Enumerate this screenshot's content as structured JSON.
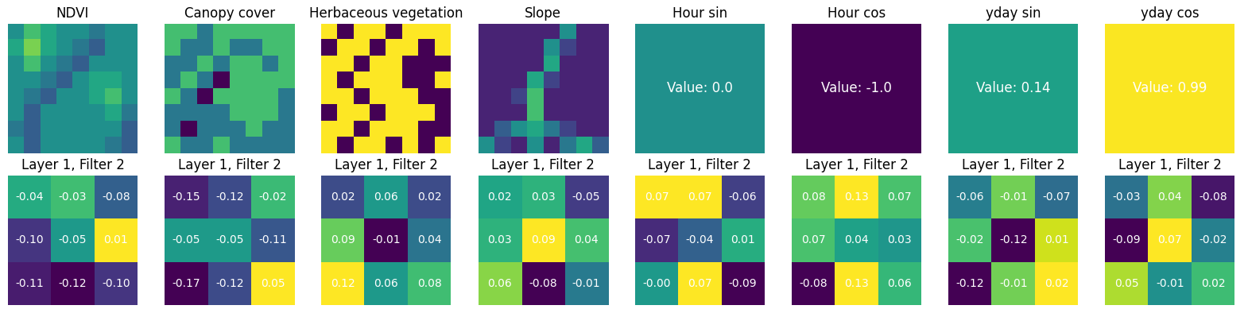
{
  "chart_data": [
    {
      "type": "heatmap",
      "title": "NDVI",
      "color_range": [
        0,
        1
      ],
      "cells": [
        [
          0.5,
          0.7,
          0.6,
          0.5,
          0.5,
          0.4,
          0.5,
          0.5
        ],
        [
          0.6,
          0.8,
          0.6,
          0.5,
          0.4,
          0.3,
          0.5,
          0.5
        ],
        [
          0.5,
          0.7,
          0.5,
          0.4,
          0.3,
          0.5,
          0.5,
          0.5
        ],
        [
          0.5,
          0.5,
          0.4,
          0.3,
          0.5,
          0.6,
          0.6,
          0.5
        ],
        [
          0.5,
          0.4,
          0.3,
          0.5,
          0.5,
          0.6,
          0.7,
          0.5
        ],
        [
          0.5,
          0.3,
          0.5,
          0.5,
          0.5,
          0.5,
          0.6,
          0.4
        ],
        [
          0.4,
          0.3,
          0.5,
          0.5,
          0.5,
          0.5,
          0.5,
          0.3
        ],
        [
          0.5,
          0.3,
          0.5,
          0.5,
          0.5,
          0.5,
          0.4,
          0.3
        ]
      ]
    },
    {
      "type": "heatmap",
      "title": "Canopy cover",
      "color_range": [
        0,
        1
      ],
      "cells": [
        [
          0.7,
          0.7,
          0.4,
          0.7,
          0.7,
          0.7,
          0.7,
          0.7
        ],
        [
          0.7,
          0.4,
          0.4,
          0.7,
          0.4,
          0.4,
          0.7,
          0.7
        ],
        [
          0.4,
          0.4,
          0.7,
          0.4,
          0.7,
          0.7,
          0.4,
          0.7
        ],
        [
          0.4,
          0.7,
          0.4,
          0.0,
          0.7,
          0.7,
          0.7,
          0.7
        ],
        [
          0.7,
          0.4,
          0.0,
          0.7,
          0.7,
          0.7,
          0.7,
          0.4
        ],
        [
          0.4,
          0.4,
          0.4,
          0.4,
          0.7,
          0.7,
          0.7,
          0.4
        ],
        [
          0.4,
          0.0,
          0.4,
          0.4,
          0.4,
          0.7,
          0.4,
          0.4
        ],
        [
          0.7,
          0.4,
          0.4,
          0.7,
          0.4,
          0.4,
          0.4,
          0.4
        ]
      ]
    },
    {
      "type": "heatmap",
      "title": "Herbaceous vegetation",
      "color_range": [
        0,
        1
      ],
      "cells": [
        [
          1,
          0,
          1,
          1,
          0,
          1,
          1,
          1
        ],
        [
          0,
          1,
          1,
          0,
          1,
          1,
          0,
          1
        ],
        [
          1,
          1,
          0,
          1,
          1,
          0,
          0,
          0
        ],
        [
          1,
          0,
          1,
          1,
          1,
          0,
          0,
          1
        ],
        [
          1,
          1,
          0,
          1,
          1,
          1,
          0,
          0
        ],
        [
          0,
          1,
          1,
          0,
          1,
          1,
          1,
          0
        ],
        [
          1,
          1,
          0,
          1,
          1,
          1,
          0,
          0
        ],
        [
          1,
          0,
          1,
          1,
          0,
          1,
          0,
          1
        ]
      ]
    },
    {
      "type": "heatmap",
      "title": "Slope",
      "color_range": [
        0,
        1
      ],
      "cells": [
        [
          0.1,
          0.1,
          0.1,
          0.1,
          0.1,
          0.5,
          0.1,
          0.1
        ],
        [
          0.1,
          0.1,
          0.1,
          0.1,
          0.5,
          0.2,
          0.1,
          0.1
        ],
        [
          0.1,
          0.1,
          0.1,
          0.1,
          0.6,
          0.1,
          0.1,
          0.1
        ],
        [
          0.1,
          0.1,
          0.1,
          0.6,
          0.2,
          0.1,
          0.1,
          0.1
        ],
        [
          0.1,
          0.1,
          0.2,
          0.7,
          0.1,
          0.1,
          0.1,
          0.1
        ],
        [
          0.1,
          0.1,
          0.1,
          0.7,
          0.1,
          0.1,
          0.1,
          0.1
        ],
        [
          0.1,
          0.3,
          0.5,
          0.6,
          0.4,
          0.2,
          0.1,
          0.1
        ],
        [
          0.5,
          0.2,
          0.1,
          0.5,
          0.1,
          0.4,
          0.6,
          0.3
        ]
      ]
    },
    {
      "type": "heatmap",
      "title": "Hour sin",
      "color_range": [
        -1,
        1
      ],
      "cells": [
        [
          0.0
        ]
      ],
      "value_labels": [
        [
          "Value: 0.0"
        ]
      ]
    },
    {
      "type": "heatmap",
      "title": "Hour cos",
      "color_range": [
        -1,
        1
      ],
      "cells": [
        [
          -1.0
        ]
      ],
      "value_labels": [
        [
          "Value: -1.0"
        ]
      ]
    },
    {
      "type": "heatmap",
      "title": "yday sin",
      "color_range": [
        -1,
        1
      ],
      "cells": [
        [
          0.14
        ]
      ],
      "value_labels": [
        [
          "Value: 0.14"
        ]
      ]
    },
    {
      "type": "heatmap",
      "title": "yday cos",
      "color_range": [
        -1,
        1
      ],
      "cells": [
        [
          0.99
        ]
      ],
      "value_labels": [
        [
          "Value: 0.99"
        ]
      ]
    },
    {
      "type": "heatmap",
      "title": "Layer 1, Filter 2",
      "cells": [
        [
          -0.04,
          -0.03,
          -0.08
        ],
        [
          -0.1,
          -0.05,
          0.01
        ],
        [
          -0.11,
          -0.12,
          -0.1
        ]
      ],
      "value_labels": [
        [
          "-0.04",
          "-0.03",
          "-0.08"
        ],
        [
          "-0.10",
          "-0.05",
          "0.01"
        ],
        [
          "-0.11",
          "-0.12",
          "-0.10"
        ]
      ]
    },
    {
      "type": "heatmap",
      "title": "Layer 1, Filter 2",
      "cells": [
        [
          -0.15,
          -0.12,
          -0.02
        ],
        [
          -0.05,
          -0.05,
          -0.11
        ],
        [
          -0.17,
          -0.12,
          0.05
        ]
      ],
      "value_labels": [
        [
          "-0.15",
          "-0.12",
          "-0.02"
        ],
        [
          "-0.05",
          "-0.05",
          "-0.11"
        ],
        [
          "-0.17",
          "-0.12",
          "0.05"
        ]
      ]
    },
    {
      "type": "heatmap",
      "title": "Layer 1, Filter 2",
      "cells": [
        [
          0.02,
          0.06,
          0.02
        ],
        [
          0.09,
          -0.01,
          0.04
        ],
        [
          0.12,
          0.06,
          0.08
        ]
      ],
      "value_labels": [
        [
          "0.02",
          "0.06",
          "0.02"
        ],
        [
          "0.09",
          "-0.01",
          "0.04"
        ],
        [
          "0.12",
          "0.06",
          "0.08"
        ]
      ]
    },
    {
      "type": "heatmap",
      "title": "Layer 1, Filter 2",
      "cells": [
        [
          0.02,
          0.03,
          -0.05
        ],
        [
          0.03,
          0.09,
          0.04
        ],
        [
          0.06,
          -0.08,
          -0.01
        ]
      ],
      "value_labels": [
        [
          "0.02",
          "0.03",
          "-0.05"
        ],
        [
          "0.03",
          "0.09",
          "0.04"
        ],
        [
          "0.06",
          "-0.08",
          "-0.01"
        ]
      ]
    },
    {
      "type": "heatmap",
      "title": "Layer 1, Filter 2",
      "cells": [
        [
          0.07,
          0.07,
          -0.06
        ],
        [
          -0.07,
          -0.04,
          0.01
        ],
        [
          -0.004,
          0.07,
          -0.09
        ]
      ],
      "value_labels": [
        [
          "0.07",
          "0.07",
          "-0.06"
        ],
        [
          "-0.07",
          "-0.04",
          "0.01"
        ],
        [
          "-0.00",
          "0.07",
          "-0.09"
        ]
      ]
    },
    {
      "type": "heatmap",
      "title": "Layer 1, Filter 2",
      "cells": [
        [
          0.08,
          0.13,
          0.07
        ],
        [
          0.07,
          0.04,
          0.03
        ],
        [
          -0.08,
          0.13,
          0.06
        ]
      ],
      "value_labels": [
        [
          "0.08",
          "0.13",
          "0.07"
        ],
        [
          "0.07",
          "0.04",
          "0.03"
        ],
        [
          "-0.08",
          "0.13",
          "0.06"
        ]
      ]
    },
    {
      "type": "heatmap",
      "title": "Layer 1, Filter 2",
      "cells": [
        [
          -0.06,
          -0.01,
          -0.07
        ],
        [
          -0.02,
          -0.12,
          0.01
        ],
        [
          -0.12,
          -0.01,
          0.02
        ]
      ],
      "value_labels": [
        [
          "-0.06",
          "-0.01",
          "-0.07"
        ],
        [
          "-0.02",
          "-0.12",
          "0.01"
        ],
        [
          "-0.12",
          "-0.01",
          "0.02"
        ]
      ]
    },
    {
      "type": "heatmap",
      "title": "Layer 1, Filter 2",
      "cells": [
        [
          -0.03,
          0.04,
          -0.08
        ],
        [
          -0.09,
          0.07,
          -0.02
        ],
        [
          0.05,
          -0.01,
          0.02
        ]
      ],
      "value_labels": [
        [
          "-0.03",
          "0.04",
          "-0.08"
        ],
        [
          "-0.09",
          "0.07",
          "-0.02"
        ],
        [
          "0.05",
          "-0.01",
          "0.02"
        ]
      ]
    }
  ]
}
